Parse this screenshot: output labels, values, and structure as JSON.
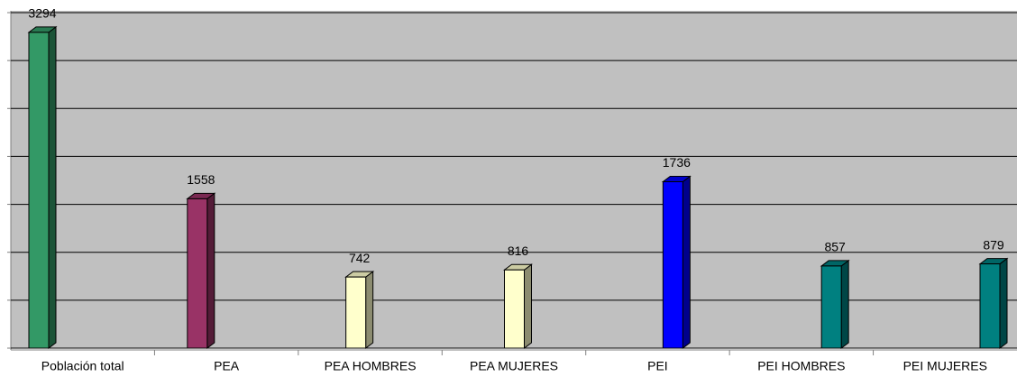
{
  "chart_data": {
    "type": "bar3d",
    "categories": [
      "Población total",
      "PEA",
      "PEA HOMBRES",
      "PEA MUJERES",
      "PEI",
      "PEI HOMBRES",
      "PEI MUJERES"
    ],
    "values": [
      3294,
      1558,
      742,
      816,
      1736,
      857,
      879
    ],
    "colors": [
      "#339966",
      "#993366",
      "#ffffcc",
      "#ffffcc",
      "#0000ff",
      "#008080",
      "#008080"
    ],
    "ylim": [
      0,
      3500
    ],
    "yticks": [
      0,
      500,
      1000,
      1500,
      2000,
      2500,
      3000,
      3500
    ],
    "grid": true
  }
}
